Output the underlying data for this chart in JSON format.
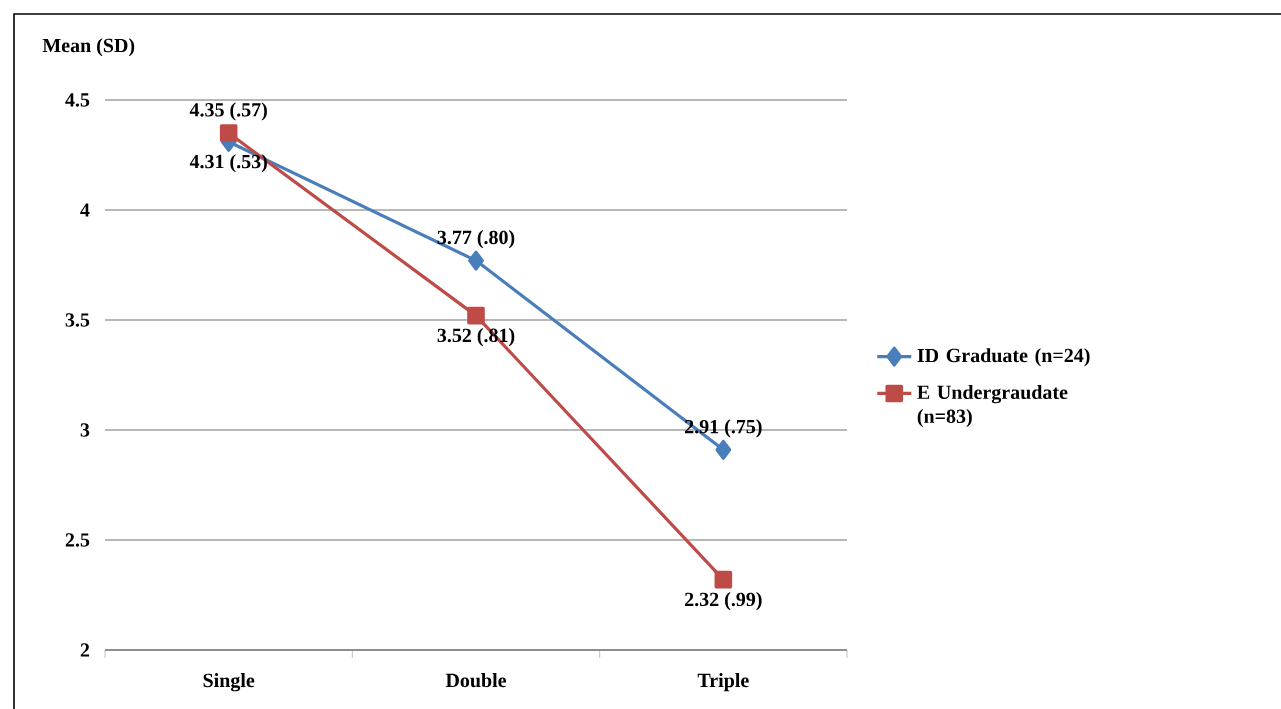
{
  "chart_data": {
    "type": "line",
    "ylabel": "Mean (SD)",
    "categories": [
      "Single",
      "Double",
      "Triple"
    ],
    "series": [
      {
        "name": "ID Graduate (n=24)",
        "color": "#4a7ebb",
        "marker": "diamond",
        "values": [
          4.31,
          3.77,
          2.91
        ],
        "value_labels": [
          "4.31 (.53)",
          "3.77 (.80)",
          "2.91 (.75)"
        ]
      },
      {
        "name": "E Undergraudate (n=83)",
        "color": "#be4b48",
        "marker": "square",
        "values": [
          4.35,
          3.52,
          2.32
        ],
        "value_labels": [
          "4.35 (.57)",
          "3.52 (.81)",
          "2.32 (.99)"
        ]
      }
    ],
    "ylim": [
      2,
      4.5
    ],
    "yticks": [
      2,
      2.5,
      3,
      3.5,
      4,
      4.5
    ],
    "grid": "y",
    "legend": "right"
  }
}
